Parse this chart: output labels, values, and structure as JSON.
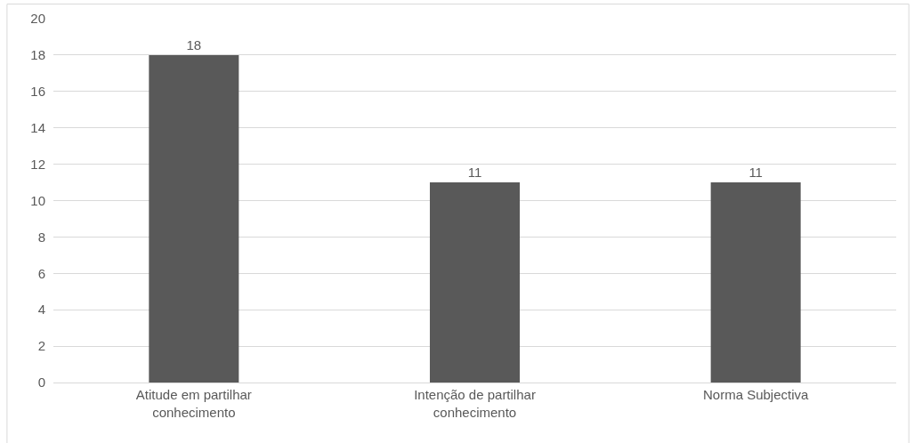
{
  "chart_data": {
    "type": "bar",
    "categories": [
      "Atitude em partilhar conhecimento",
      "Intenção de partilhar conhecimento",
      "Norma Subjectiva"
    ],
    "values": [
      18,
      11,
      11
    ],
    "color": "#595959",
    "ylim": [
      0,
      20
    ],
    "yticks": [
      0,
      2,
      4,
      6,
      8,
      10,
      12,
      14,
      16,
      18,
      20
    ],
    "grid": "y",
    "data_labels": true,
    "legend": false
  }
}
